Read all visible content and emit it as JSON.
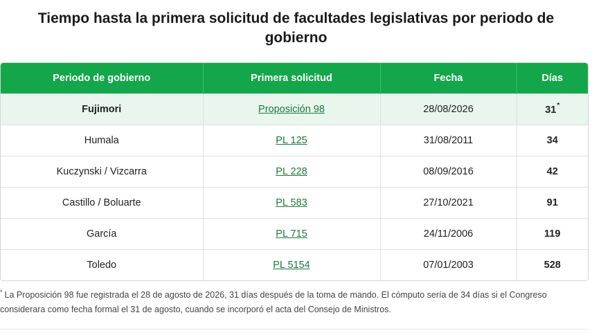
{
  "title": "Tiempo hasta la primera solicitud de facultades legislativas por periodo de gobierno",
  "table": {
    "headers": [
      "Periodo de gobierno",
      "Primera solicitud",
      "Fecha",
      "Días"
    ],
    "rows": [
      {
        "period": "Fujimori",
        "request": "Proposición 98",
        "date": "28/08/2026",
        "days": "31",
        "marker": "*"
      },
      {
        "period": "Humala",
        "request": "PL 125",
        "date": "31/08/2011",
        "days": "34"
      },
      {
        "period": "Kuczynski / Vizcarra",
        "request": "PL 228",
        "date": "08/09/2016",
        "days": "42"
      },
      {
        "period": "Castillo / Boluarte",
        "request": "PL 583",
        "date": "27/10/2021",
        "days": "91"
      },
      {
        "period": "García",
        "request": "PL 715",
        "date": "24/11/2006",
        "days": "119"
      },
      {
        "period": "Toledo",
        "request": "PL 5154",
        "date": "07/01/2003",
        "days": "528"
      }
    ]
  },
  "footnote": {
    "marker": "*",
    "text": "La Proposición 98 fue registrada el 28 de agosto de 2026, 31 días después de la toma de mando. El cómputo sería de 34 días si el Congreso considerara como fecha formal el 31 de agosto, cuando se incorporó el acta del Consejo de Ministros."
  },
  "colors": {
    "header_bg": "#14a64b",
    "highlight_row_bg": "#e8f6ed",
    "link": "#1b7a3a"
  }
}
